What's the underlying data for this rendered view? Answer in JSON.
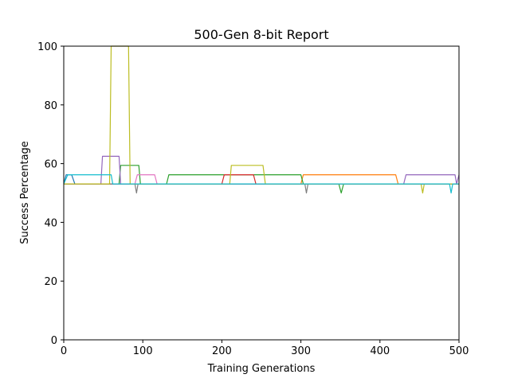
{
  "chart_data": {
    "type": "line",
    "title": "500-Gen 8-bit Report",
    "xlabel": "Training Generations",
    "ylabel": "Success Percentage",
    "xlim": [
      0,
      500
    ],
    "ylim": [
      0,
      100
    ],
    "xticks": [
      0,
      100,
      200,
      300,
      400,
      500
    ],
    "yticks": [
      0,
      20,
      40,
      60,
      80,
      100
    ],
    "grid": false,
    "legend": "none",
    "series": [
      {
        "color": "#1f77b4",
        "points": [
          [
            0,
            53.1
          ],
          [
            3,
            56.2
          ],
          [
            10,
            56.2
          ],
          [
            14,
            53.1
          ],
          [
            500,
            53.1
          ]
        ]
      },
      {
        "color": "#ff7f0e",
        "points": [
          [
            0,
            53.1
          ],
          [
            300,
            53.1
          ],
          [
            303,
            56.2
          ],
          [
            420,
            56.2
          ],
          [
            423,
            53.1
          ],
          [
            500,
            53.1
          ]
        ]
      },
      {
        "color": "#2ca02c",
        "points": [
          [
            0,
            53.1
          ],
          [
            70,
            53.1
          ],
          [
            72,
            59.4
          ],
          [
            95,
            59.4
          ],
          [
            97,
            53.1
          ],
          [
            130,
            53.1
          ],
          [
            133,
            56.2
          ],
          [
            300,
            56.2
          ],
          [
            303,
            53.1
          ],
          [
            348,
            53.1
          ],
          [
            351,
            50.0
          ],
          [
            354,
            53.1
          ],
          [
            500,
            53.1
          ]
        ]
      },
      {
        "color": "#d62728",
        "points": [
          [
            0,
            53.1
          ],
          [
            200,
            53.1
          ],
          [
            203,
            56.2
          ],
          [
            240,
            56.2
          ],
          [
            243,
            53.1
          ],
          [
            500,
            53.1
          ]
        ]
      },
      {
        "color": "#9467bd",
        "points": [
          [
            0,
            53.1
          ],
          [
            47,
            53.1
          ],
          [
            49,
            62.5
          ],
          [
            70,
            62.5
          ],
          [
            72,
            53.1
          ],
          [
            430,
            53.1
          ],
          [
            433,
            56.2
          ],
          [
            495,
            56.2
          ],
          [
            497,
            53.1
          ],
          [
            500,
            56.2
          ]
        ]
      },
      {
        "color": "#8c564b",
        "points": [
          [
            0,
            53.1
          ],
          [
            500,
            53.1
          ]
        ]
      },
      {
        "color": "#e377c2",
        "points": [
          [
            0,
            53.1
          ],
          [
            90,
            53.1
          ],
          [
            93,
            56.2
          ],
          [
            115,
            56.2
          ],
          [
            118,
            53.1
          ],
          [
            500,
            53.1
          ]
        ]
      },
      {
        "color": "#7f7f7f",
        "points": [
          [
            0,
            53.1
          ],
          [
            90,
            53.1
          ],
          [
            92,
            50.0
          ],
          [
            94,
            53.1
          ],
          [
            305,
            53.1
          ],
          [
            307,
            50.0
          ],
          [
            309,
            53.1
          ],
          [
            500,
            53.1
          ]
        ]
      },
      {
        "color": "#bcbd22",
        "points": [
          [
            0,
            53.1
          ],
          [
            58,
            53.1
          ],
          [
            60,
            100
          ],
          [
            82,
            100
          ],
          [
            84,
            53.1
          ],
          [
            210,
            53.1
          ],
          [
            212,
            59.4
          ],
          [
            252,
            59.4
          ],
          [
            255,
            53.1
          ],
          [
            452,
            53.1
          ],
          [
            454,
            50.0
          ],
          [
            456,
            53.1
          ],
          [
            500,
            53.1
          ]
        ]
      },
      {
        "color": "#17becf",
        "points": [
          [
            0,
            53.1
          ],
          [
            5,
            56.2
          ],
          [
            60,
            56.2
          ],
          [
            62,
            53.1
          ],
          [
            488,
            53.1
          ],
          [
            490,
            50.0
          ],
          [
            492,
            53.1
          ],
          [
            500,
            53.1
          ]
        ]
      }
    ]
  }
}
